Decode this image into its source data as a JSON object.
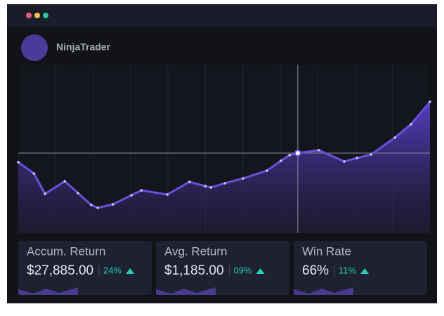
{
  "window": {
    "app_name": "NinjaTrader"
  },
  "chart_data": {
    "type": "area",
    "x": [
      0,
      3.8,
      6.5,
      11.3,
      14.5,
      17.7,
      19.3,
      23.0,
      27.5,
      29.9,
      36.2,
      41.6,
      45.4,
      46.8,
      50.2,
      54.6,
      60.4,
      63.8,
      65.9,
      67.9,
      73.0,
      79.2,
      82.3,
      85.7,
      91.5,
      95.4,
      100
    ],
    "values": [
      42.1,
      35.4,
      23.3,
      30.8,
      23.8,
      16.7,
      15.0,
      17.1,
      22.5,
      25.4,
      22.9,
      30.4,
      27.9,
      27.1,
      29.6,
      32.5,
      37.1,
      42.9,
      46.3,
      47.5,
      49.2,
      42.5,
      44.6,
      46.7,
      56.7,
      64.6,
      77.9
    ],
    "color": "#6a4fdc",
    "xlim": [
      0,
      100
    ],
    "ylim": [
      0,
      100
    ],
    "highlight_index": 19,
    "grid": true
  },
  "stats": [
    {
      "label": "Accum. Return",
      "value": "$27,885.00",
      "change": "24%",
      "trend": "up"
    },
    {
      "label": "Avg. Return",
      "value": "$1,185.00",
      "change": "09%",
      "trend": "up"
    },
    {
      "label": "Win Rate",
      "value": "66%",
      "change": "11%",
      "trend": "up"
    }
  ]
}
